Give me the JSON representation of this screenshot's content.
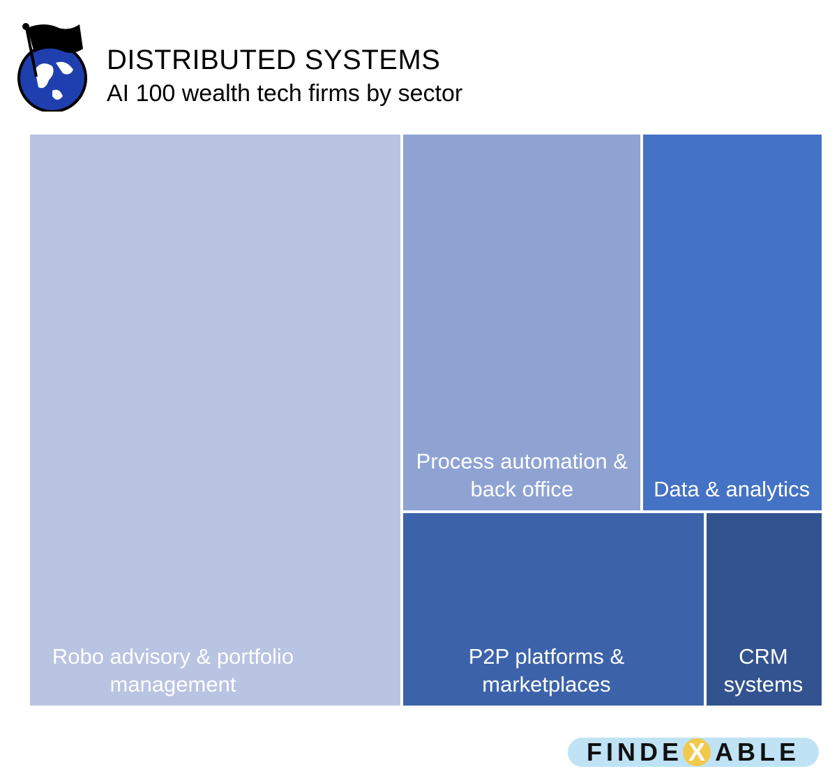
{
  "chart_data": {
    "type": "treemap",
    "title": "DISTRIBUTED SYSTEMS",
    "subtitle": "AI 100 wealth tech firms by sector",
    "categories": [
      "Robo advisory & portfolio management",
      "Process automation & back office",
      "Data & analytics",
      "P2P platforms & marketplaces",
      "CRM systems"
    ],
    "values": [
      47,
      20,
      15,
      13,
      5
    ],
    "colors": [
      "#b9c3e2",
      "#8fa3d3",
      "#4472c4",
      "#3c63aa",
      "#32538f"
    ]
  },
  "logo": {
    "left": "FINDE",
    "mark": "X",
    "right": "ABLE"
  }
}
